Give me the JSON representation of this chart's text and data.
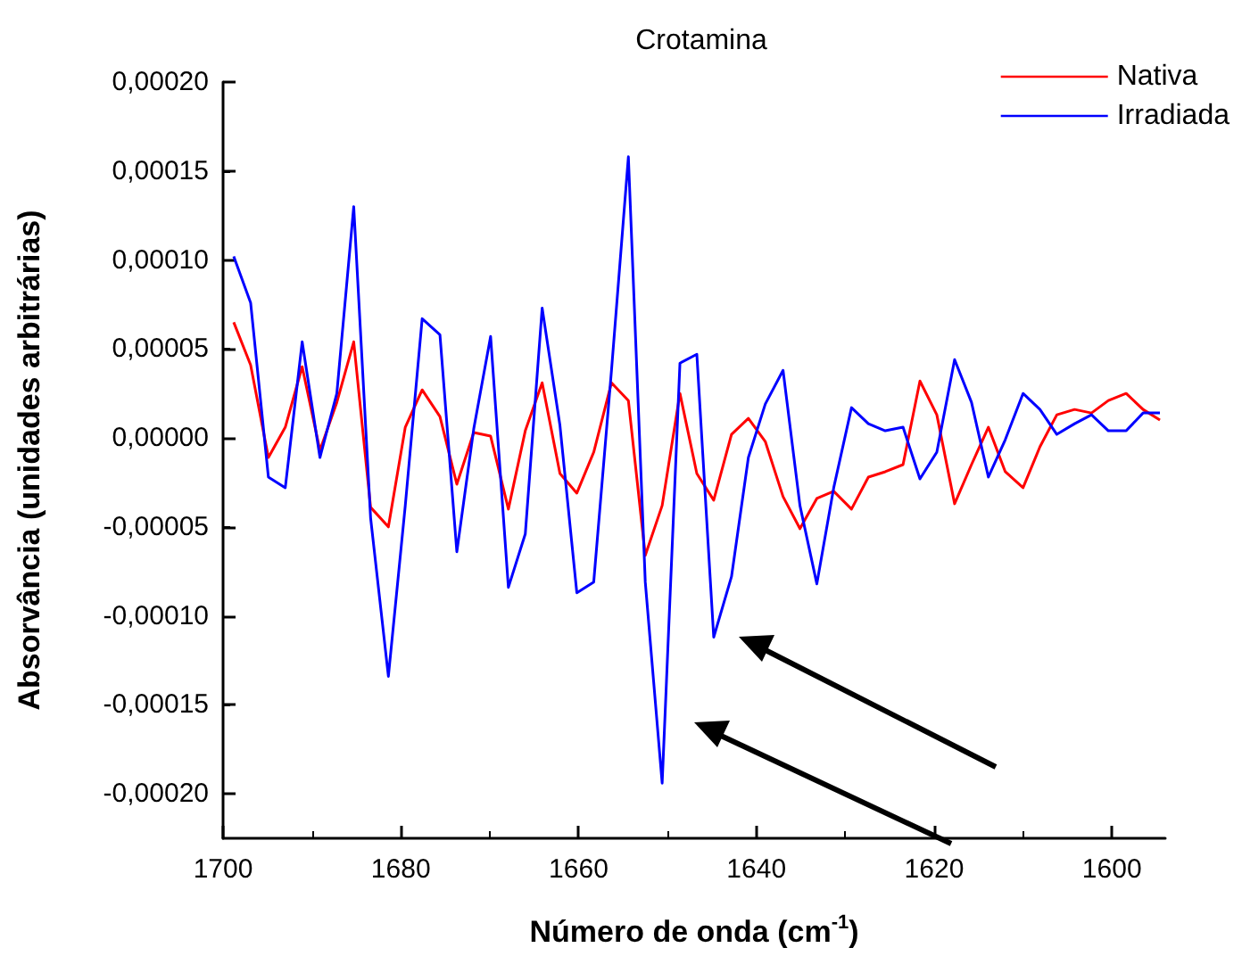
{
  "chart_data": {
    "type": "line",
    "title": "Crotamina",
    "xlabel": "Número de onda (cm$^{-1}$)",
    "ylabel": "Absorvância (unidades arbitrárias)",
    "x": [
      1698.8,
      1696.9,
      1694.9,
      1693.0,
      1691.1,
      1689.1,
      1687.2,
      1685.3,
      1683.4,
      1681.4,
      1679.5,
      1677.6,
      1675.6,
      1673.7,
      1671.8,
      1669.9,
      1667.9,
      1666.0,
      1664.1,
      1662.1,
      1660.2,
      1658.3,
      1656.3,
      1654.4,
      1652.5,
      1650.6,
      1648.6,
      1646.7,
      1644.8,
      1642.8,
      1640.9,
      1639.0,
      1637.0,
      1635.1,
      1633.2,
      1631.3,
      1629.3,
      1627.4,
      1625.5,
      1623.5,
      1621.6,
      1619.7,
      1617.7,
      1615.8,
      1613.9,
      1612.0,
      1610.0,
      1608.1,
      1606.2,
      1604.2,
      1602.3,
      1600.4,
      1598.4,
      1596.5,
      1594.6
    ],
    "series": [
      {
        "name": "Nativa",
        "color": "#ff0000",
        "values": [
          6.5e-05,
          4.1e-05,
          -1.1e-05,
          6e-06,
          4e-05,
          -7e-06,
          2e-05,
          5.4e-05,
          -3.9e-05,
          -5e-05,
          6e-06,
          2.7e-05,
          1.2e-05,
          -2.6e-05,
          3e-06,
          1e-06,
          -4e-05,
          4e-06,
          3.1e-05,
          -2e-05,
          -3.1e-05,
          -8e-06,
          3.1e-05,
          2.1e-05,
          -6.6e-05,
          -3.8e-05,
          2.5e-05,
          -2e-05,
          -3.5e-05,
          2e-06,
          1.1e-05,
          -2e-06,
          -3.3e-05,
          -5.1e-05,
          -3.4e-05,
          -3e-05,
          -4e-05,
          -2.2e-05,
          -1.9e-05,
          -1.5e-05,
          3.2e-05,
          1.3e-05,
          -3.7e-05,
          -1.5e-05,
          6e-06,
          -1.9e-05,
          -2.8e-05,
          -5e-06,
          1.3e-05,
          1.6e-05,
          1.4e-05,
          2.1e-05,
          2.5e-05,
          1.6e-05,
          1e-05
        ]
      },
      {
        "name": "Irradiada",
        "color": "#0000ff",
        "values": [
          0.000102,
          7.6e-05,
          -2.2e-05,
          -2.8e-05,
          5.4e-05,
          -1.1e-05,
          2.5e-05,
          0.00013,
          -4.5e-05,
          -0.000134,
          -3.8e-05,
          6.7e-05,
          5.8e-05,
          -6.4e-05,
          5e-06,
          5.7e-05,
          -8.4e-05,
          -5.4e-05,
          7.3e-05,
          7e-06,
          -8.7e-05,
          -8.1e-05,
          3.8e-05,
          0.000158,
          -8.1e-05,
          -0.000194,
          4.2e-05,
          4.7e-05,
          -0.000112,
          -7.8e-05,
          -1.1e-05,
          1.9e-05,
          3.8e-05,
          -3.8e-05,
          -8.2e-05,
          -2.8e-05,
          1.7e-05,
          8e-06,
          4e-06,
          6e-06,
          -2.3e-05,
          -8e-06,
          4.4e-05,
          2e-05,
          -2.2e-05,
          -1e-06,
          2.5e-05,
          1.6e-05,
          2e-06,
          8e-06,
          1.3e-05,
          4e-06,
          4e-06,
          1.4e-05,
          1.4e-05
        ]
      }
    ],
    "xlim": [
      1700,
      1594
    ],
    "xticks": [
      1700,
      1680,
      1660,
      1640,
      1620,
      1600
    ],
    "ylim": [
      -0.000225,
      0.0002
    ],
    "yticks": [
      {
        "value": 0.0002,
        "label": "0,00020"
      },
      {
        "value": 0.00015,
        "label": "0,00015"
      },
      {
        "value": 0.0001,
        "label": "0,00010"
      },
      {
        "value": 5e-05,
        "label": "0,00005"
      },
      {
        "value": 0,
        "label": "0,00000"
      },
      {
        "value": -5e-05,
        "label": "-0,00005"
      },
      {
        "value": -0.0001,
        "label": "-0,00010"
      },
      {
        "value": -0.00015,
        "label": "-0,00015"
      },
      {
        "value": -0.0002,
        "label": "-0,00020"
      }
    ],
    "grid": false,
    "legend": "top right",
    "marker": "none",
    "line_style": "solid"
  }
}
